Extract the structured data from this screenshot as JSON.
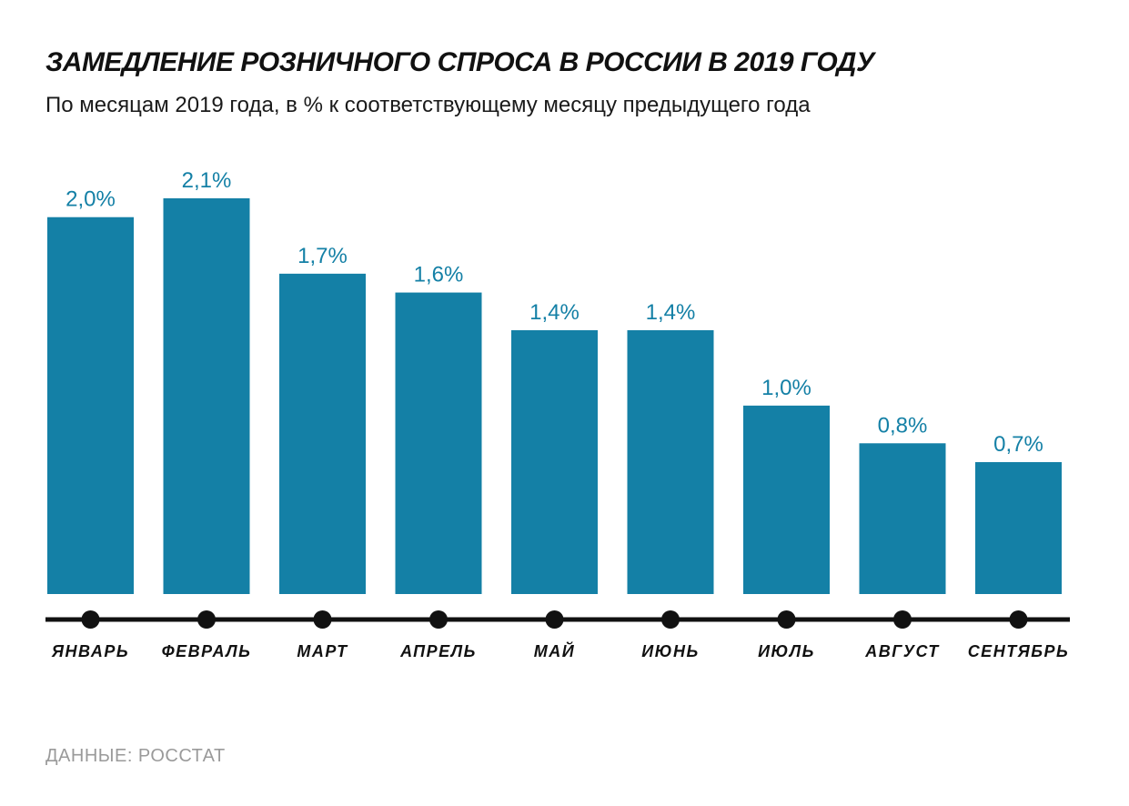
{
  "title": "ЗАМЕДЛЕНИЕ РОЗНИЧНОГО СПРОСА В РОССИИ В 2019 ГОДУ",
  "subtitle": "По месяцам 2019 года, в % к соответствующему месяцу предыдущего года",
  "source": "ДАННЫЕ: РОССТАТ",
  "colors": {
    "bar": "#1480a6",
    "value_label": "#1480a6",
    "axis": "#111111",
    "month_label": "#111111",
    "title": "#111111",
    "source": "#9a9a9a"
  },
  "chart_data": {
    "type": "bar",
    "categories": [
      "ЯНВАРЬ",
      "ФЕВРАЛЬ",
      "МАРТ",
      "АПРЕЛЬ",
      "МАЙ",
      "ИЮНЬ",
      "ИЮЛЬ",
      "АВГУСТ",
      "СЕНТЯБРЬ"
    ],
    "values": [
      2.0,
      2.1,
      1.7,
      1.6,
      1.4,
      1.4,
      1.0,
      0.8,
      0.7
    ],
    "value_labels": [
      "2,0%",
      "2,1%",
      "1,7%",
      "1,6%",
      "1,4%",
      "1,4%",
      "1,0%",
      "0,8%",
      "0,7%"
    ],
    "ylim": [
      0,
      2.1
    ],
    "grid": false,
    "legend": "none"
  }
}
